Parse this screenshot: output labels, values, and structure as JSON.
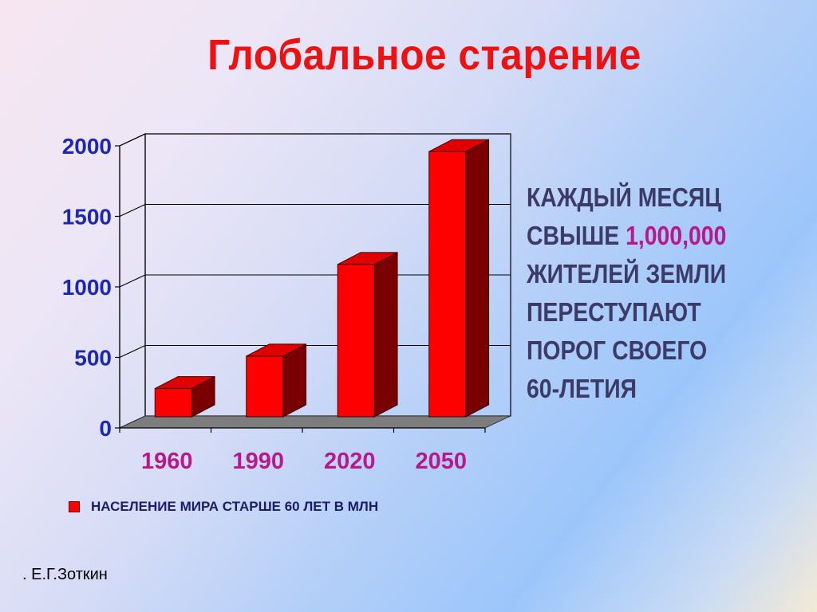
{
  "title": "Глобальное старение",
  "note": {
    "line1": "КАЖДЫЙ МЕСЯЦ",
    "line2_prefix": "СВЫШЕ ",
    "line2_number": "1,000,000",
    "line3": "ЖИТЕЛЕЙ ЗЕМЛИ",
    "line4": "ПЕРЕСТУПАЮТ",
    "line5": "ПОРОГ СВОЕГО",
    "line6": "60-ЛЕТИЯ"
  },
  "author": ". Е.Г.Зоткин",
  "colors": {
    "title": "#ee1111",
    "bar_front": "#ff0000",
    "bar_side": "#7a0000",
    "bar_top": "#e00000",
    "y_ticks": "#1d27b5",
    "x_ticks": "#b8188b"
  },
  "chart_data": {
    "type": "bar",
    "style": "3d",
    "categories": [
      "1960",
      "1990",
      "2020",
      "2050"
    ],
    "series": [
      {
        "name": "НАСЕЛЕНИЕ МИРА СТАРШЕ 60 ЛЕТ В МЛН",
        "values": [
          200,
          430,
          1080,
          1880
        ]
      }
    ],
    "ylim": [
      0,
      2000
    ],
    "yticks": [
      0,
      500,
      1000,
      1500,
      2000
    ],
    "grid": true,
    "legend": "bottom-left"
  }
}
